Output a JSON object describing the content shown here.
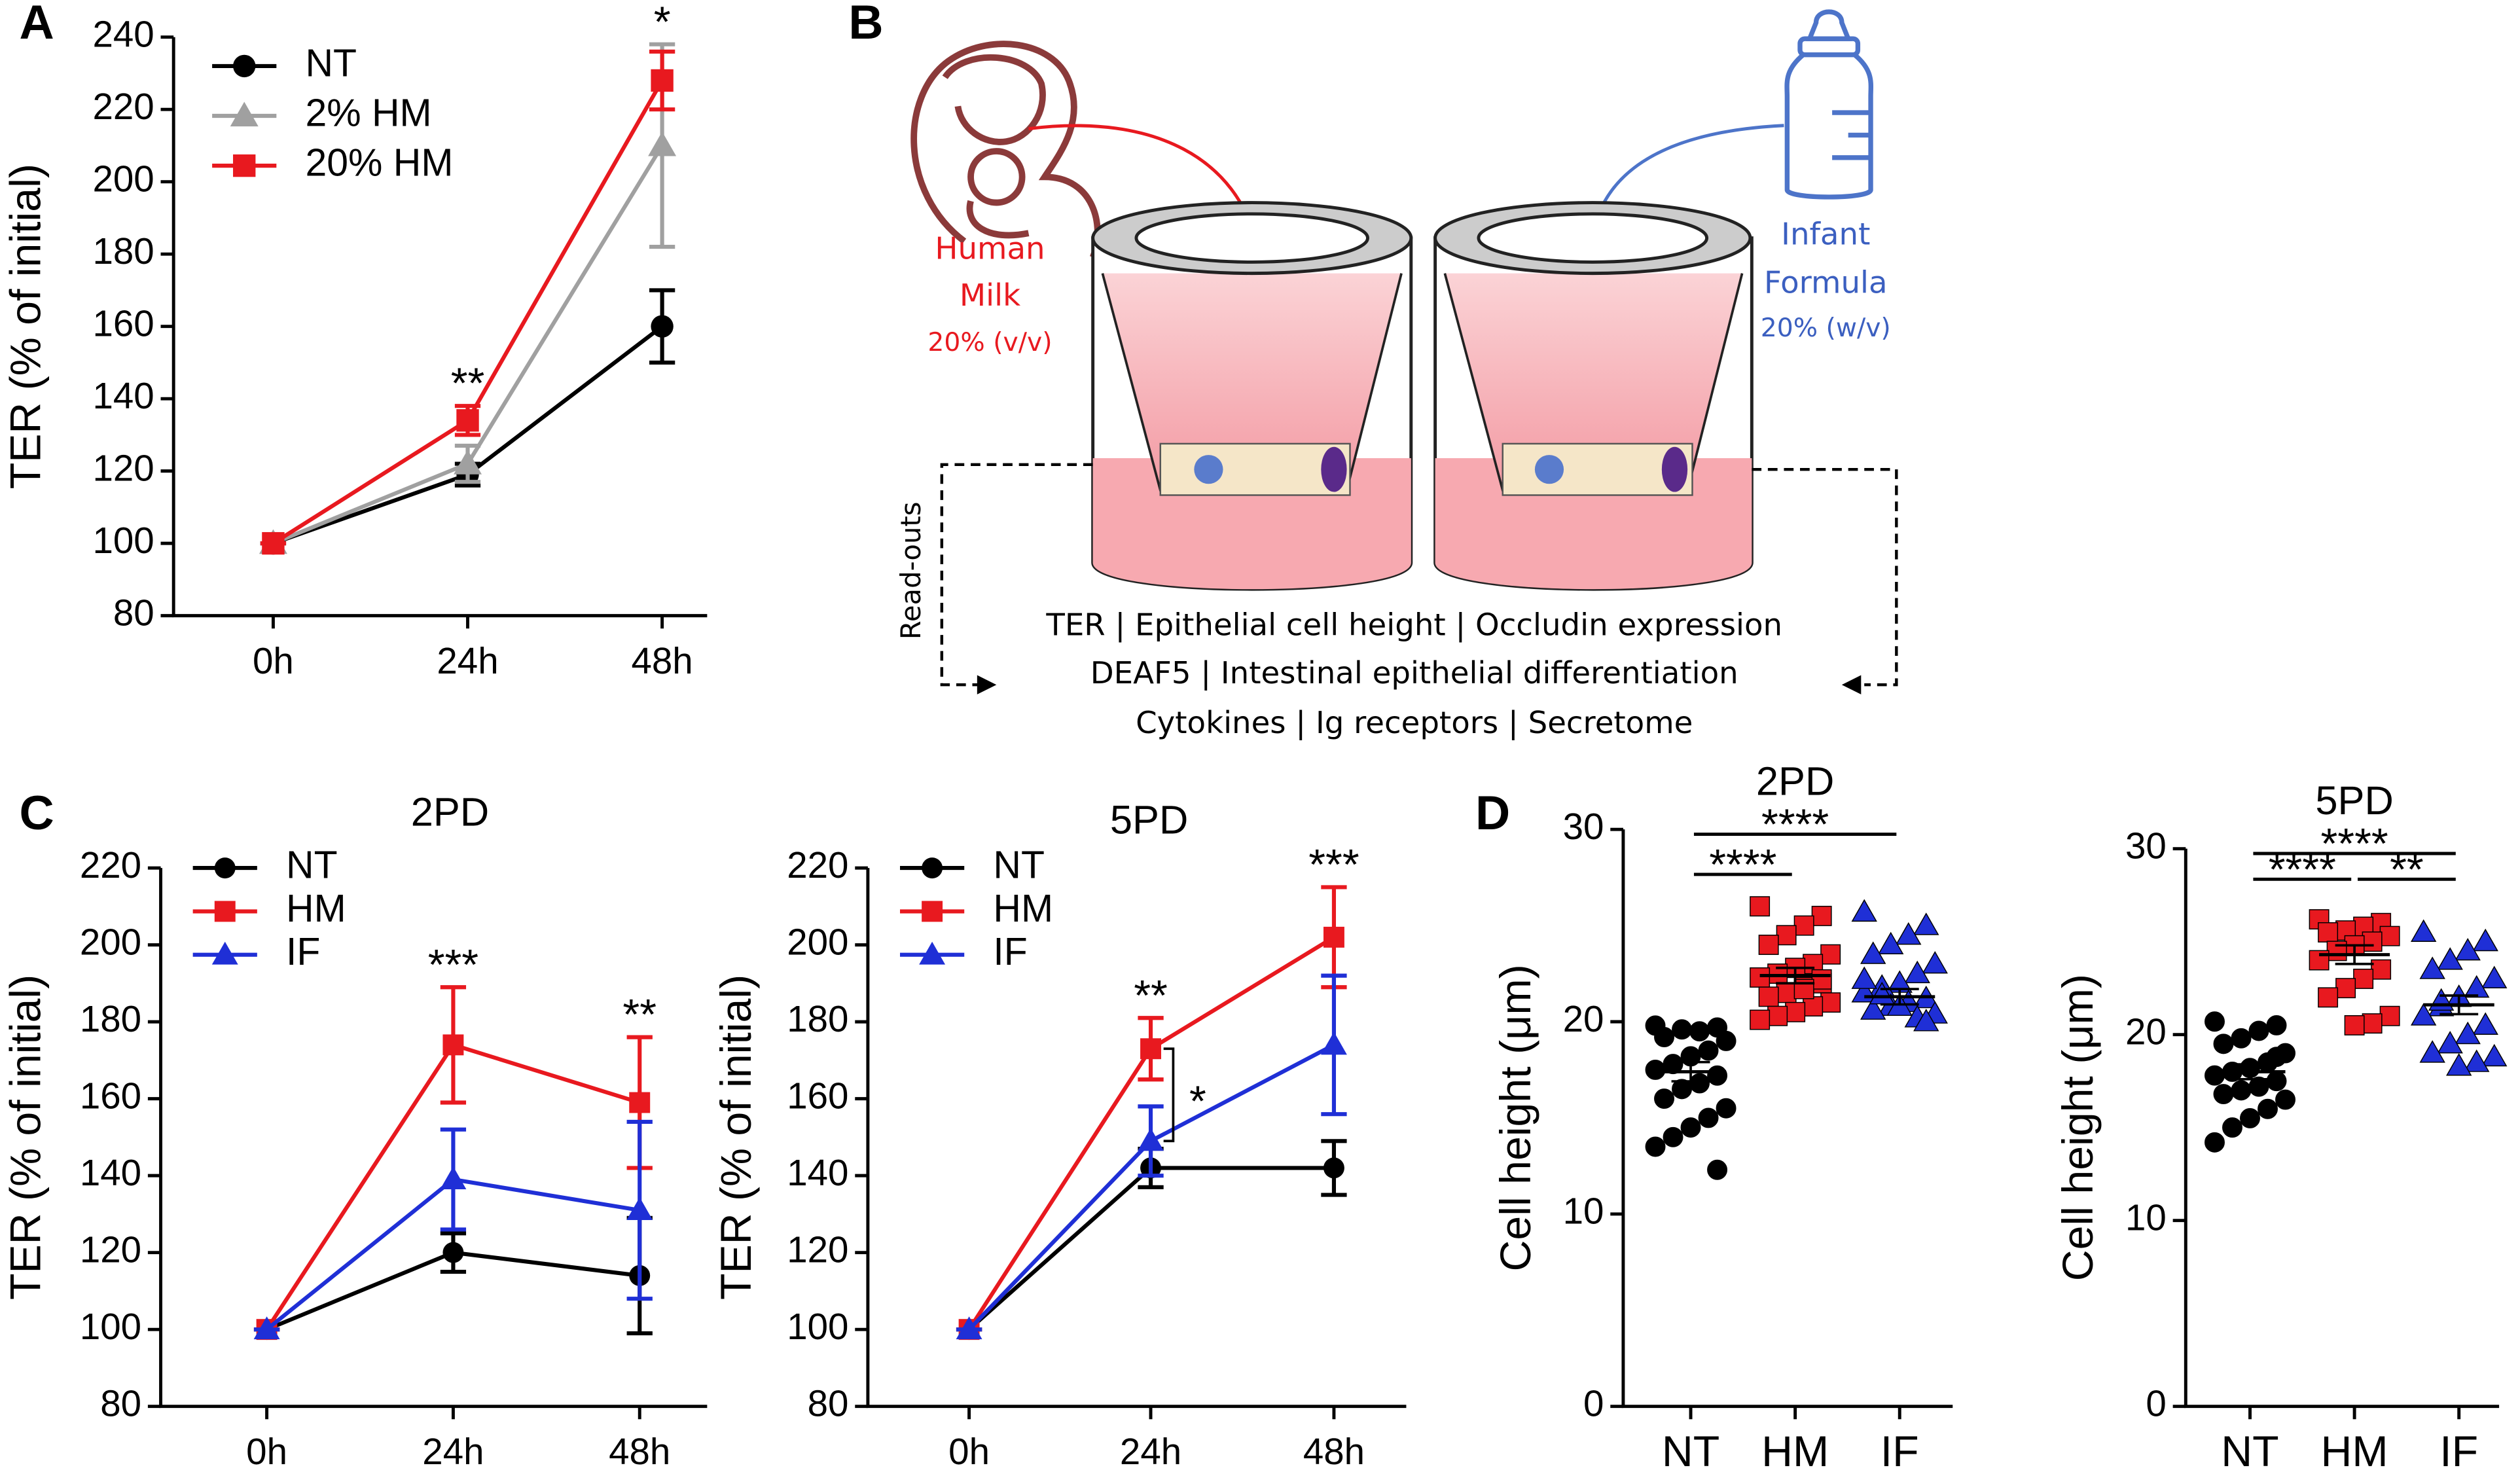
{
  "panel_labels": [
    "A",
    "B",
    "C",
    "D"
  ],
  "chart_data": [
    {
      "type": "line",
      "ylabel": "TER (% of initial)",
      "categories": [
        "0h",
        "24h",
        "48h"
      ],
      "ylim": [
        80,
        240
      ],
      "yticks": [
        80,
        100,
        120,
        140,
        160,
        180,
        200,
        220,
        240
      ],
      "legend": "upper left",
      "series": [
        {
          "name": "NT",
          "color": "#000000",
          "marker": "circle",
          "values": [
            100,
            119,
            160
          ],
          "errors": [
            0,
            3,
            10
          ]
        },
        {
          "name": "2% HM",
          "color": "#a0a0a0",
          "marker": "triangle",
          "values": [
            100,
            122,
            210
          ],
          "errors": [
            0,
            5,
            28
          ]
        },
        {
          "name": "20% HM",
          "color": "#e8191f",
          "marker": "square",
          "values": [
            100,
            134,
            228
          ],
          "errors": [
            0,
            4,
            8
          ]
        }
      ],
      "annotations": [
        {
          "text": "**",
          "category": "24h"
        },
        {
          "text": "*",
          "category": "48h"
        }
      ]
    },
    {
      "type": "line",
      "title": "2PD",
      "ylabel": "TER (% of initial)",
      "categories": [
        "0h",
        "24h",
        "48h"
      ],
      "ylim": [
        80,
        220
      ],
      "yticks": [
        80,
        100,
        120,
        140,
        160,
        180,
        200,
        220
      ],
      "legend": "upper left",
      "series": [
        {
          "name": "NT",
          "color": "#000000",
          "marker": "circle",
          "values": [
            100,
            120,
            114
          ],
          "errors": [
            0,
            5,
            15
          ]
        },
        {
          "name": "HM",
          "color": "#e8191f",
          "marker": "square",
          "values": [
            100,
            174,
            159
          ],
          "errors": [
            0,
            15,
            17
          ]
        },
        {
          "name": "IF",
          "color": "#1f2fd6",
          "marker": "triangle",
          "values": [
            100,
            139,
            131
          ],
          "errors": [
            0,
            13,
            23
          ]
        }
      ],
      "annotations": [
        {
          "text": "***",
          "category": "24h"
        },
        {
          "text": "**",
          "category": "48h"
        }
      ]
    },
    {
      "type": "line",
      "title": "5PD",
      "ylabel": "TER (% of initial)",
      "categories": [
        "0h",
        "24h",
        "48h"
      ],
      "ylim": [
        80,
        220
      ],
      "yticks": [
        80,
        100,
        120,
        140,
        160,
        180,
        200,
        220
      ],
      "legend": "upper left",
      "series": [
        {
          "name": "NT",
          "color": "#000000",
          "marker": "circle",
          "values": [
            100,
            142,
            142
          ],
          "errors": [
            0,
            5,
            7
          ]
        },
        {
          "name": "HM",
          "color": "#e8191f",
          "marker": "square",
          "values": [
            100,
            173,
            202
          ],
          "errors": [
            0,
            8,
            13
          ]
        },
        {
          "name": "IF",
          "color": "#1f2fd6",
          "marker": "triangle",
          "values": [
            100,
            149,
            174
          ],
          "errors": [
            0,
            9,
            18
          ]
        }
      ],
      "annotations": [
        {
          "text": "**",
          "category": "24h"
        },
        {
          "text": "***",
          "category": "48h"
        },
        {
          "text": "*",
          "category": "24h",
          "between": [
            "HM",
            "IF"
          ]
        }
      ]
    },
    {
      "type": "dot",
      "title": "2PD",
      "ylabel": "Cell height (μm)",
      "categories": [
        "NT",
        "HM",
        "IF"
      ],
      "ylim": [
        0,
        30
      ],
      "yticks": [
        0,
        10,
        20,
        30
      ],
      "groups": [
        {
          "color": "#000000",
          "marker": "circle",
          "mean": 17.4,
          "sem": 0.5,
          "values": [
            19.8,
            19.7,
            19.5,
            19.6,
            19.2,
            19,
            18.5,
            18.2,
            17.8,
            17.5,
            17.2,
            16.8,
            16.5,
            16,
            15.5,
            15,
            14.5,
            14,
            13.5,
            12.3
          ]
        },
        {
          "color": "#e8191f",
          "marker": "square",
          "mean": 22.4,
          "sem": 0.4,
          "values": [
            26,
            25.5,
            25,
            24.5,
            24,
            23.5,
            23,
            22.8,
            22.5,
            22.3,
            22,
            21.8,
            21.5,
            21.3,
            21,
            20.8,
            20.5,
            20.3,
            20.1,
            22.2,
            21.7
          ]
        },
        {
          "color": "#1f2fd6",
          "marker": "triangle",
          "mean": 21.3,
          "sem": 0.4,
          "values": [
            25.7,
            25,
            24.5,
            24,
            23.5,
            23,
            22.5,
            22,
            21.8,
            21.5,
            21.2,
            21,
            20.8,
            20.6,
            20.4,
            20.2,
            20.8,
            21.4,
            22.2,
            20
          ]
        }
      ],
      "comparisons": [
        {
          "groups": [
            "NT",
            "IF"
          ],
          "label": "****"
        },
        {
          "groups": [
            "NT",
            "HM"
          ],
          "label": "****"
        }
      ]
    },
    {
      "type": "dot",
      "title": "5PD",
      "ylabel": "Cell height (μm)",
      "categories": [
        "NT",
        "HM",
        "IF"
      ],
      "ylim": [
        0,
        30
      ],
      "yticks": [
        0,
        10,
        20,
        30
      ],
      "groups": [
        {
          "color": "#000000",
          "marker": "circle",
          "mean": 18,
          "sem": 0.4,
          "values": [
            20.7,
            20.5,
            20.2,
            19.8,
            19.5,
            19,
            18.5,
            18.2,
            18,
            17.8,
            17.5,
            17.2,
            17,
            16.8,
            16.5,
            16,
            15.5,
            15,
            14.2,
            18.8
          ]
        },
        {
          "color": "#e8191f",
          "marker": "square",
          "mean": 24.3,
          "sem": 0.5,
          "values": [
            26.2,
            26,
            25.8,
            25.6,
            25.5,
            25.3,
            25,
            24.8,
            24.5,
            24,
            23.5,
            23,
            22.5,
            22,
            21,
            20.6,
            20.5
          ]
        },
        {
          "color": "#1f2fd6",
          "marker": "triangle",
          "mean": 21.6,
          "sem": 0.5,
          "values": [
            25.5,
            25,
            24.5,
            24,
            23.5,
            23,
            22.5,
            22,
            21.5,
            21,
            20.5,
            20,
            19.5,
            19,
            18.8,
            18.5,
            18.3,
            21.8
          ]
        }
      ],
      "comparisons": [
        {
          "groups": [
            "NT",
            "IF"
          ],
          "label": "****"
        },
        {
          "groups": [
            "NT",
            "HM"
          ],
          "label": "****"
        },
        {
          "groups": [
            "HM",
            "IF"
          ],
          "label": "**"
        }
      ]
    }
  ],
  "diagram": {
    "milk_label": [
      "Human",
      "Milk"
    ],
    "milk_conc": "20% (v/v)",
    "formula_label": [
      "Infant",
      "Formula"
    ],
    "formula_conc": "20% (w/v)",
    "side_label": "Read-outs",
    "readouts": [
      "TER | Epithelial cell height | Occludin expression",
      "DEAF5 | Intestinal epithelial differentiation",
      "Cytokines | Ig receptors | Secretome"
    ]
  }
}
